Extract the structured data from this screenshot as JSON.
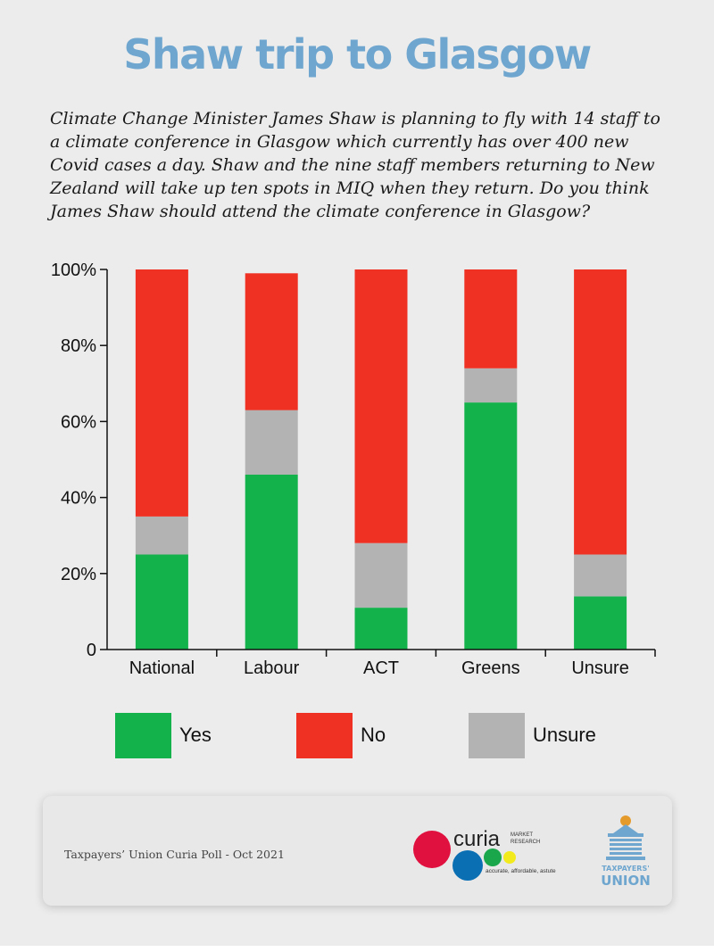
{
  "title": "Shaw trip to Glasgow",
  "question": "Climate Change Minister James Shaw is planning to fly with 14 staff to a climate conference in Glasgow which currently has over 400 new Covid cases a day. Shaw and the nine staff members returning to New Zealand will take up ten spots in MIQ when they return. Do you think James Shaw should attend the climate conference in Glasgow?",
  "colors": {
    "yes": "#13b24b",
    "no": "#ef3124",
    "unsure": "#b3b3b3"
  },
  "chart_data": {
    "type": "bar",
    "stacked": true,
    "categories": [
      "National",
      "Labour",
      "ACT",
      "Greens",
      "Unsure"
    ],
    "series": [
      {
        "name": "Yes",
        "values": [
          25,
          46,
          11,
          65,
          14
        ]
      },
      {
        "name": "Unsure",
        "values": [
          10,
          17,
          17,
          9,
          11
        ]
      },
      {
        "name": "No",
        "values": [
          65,
          36,
          72,
          26,
          75
        ]
      }
    ],
    "ylim": [
      0,
      100
    ],
    "yticks": [
      {
        "value": 0,
        "label": "0"
      },
      {
        "value": 20,
        "label": "20%"
      },
      {
        "value": 40,
        "label": "40%"
      },
      {
        "value": 60,
        "label": "60%"
      },
      {
        "value": 80,
        "label": "80%"
      },
      {
        "value": 100,
        "label": "100%"
      }
    ],
    "grid": false,
    "legend_position": "bottom",
    "legend": [
      "Yes",
      "No",
      "Unsure"
    ]
  },
  "legend": {
    "yes": "Yes",
    "no": "No",
    "unsure": "Unsure"
  },
  "footer": {
    "source": "Taxpayers’ Union Curia Poll - Oct 2021",
    "curia_logo_text": "curia",
    "curia_sub_market": "MARKET",
    "curia_sub_research": "RESEARCH",
    "curia_tagline": "accurate, affordable, astute",
    "tu_logo_line1": "TAXPAYERS'",
    "tu_logo_line2": "UNION"
  }
}
